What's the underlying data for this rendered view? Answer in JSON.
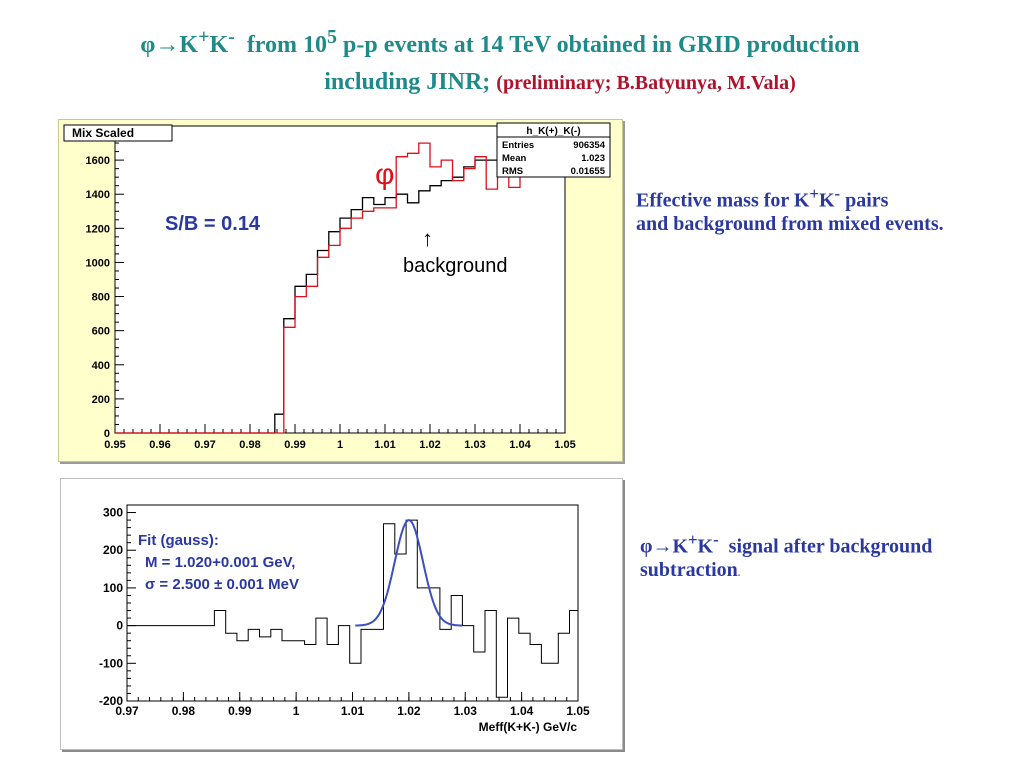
{
  "header": {
    "line1_phi": "φ→K",
    "line1_sup1": "+",
    "line1_k": "K",
    "line1_sup2": "-",
    "line1_mid": "  from 10",
    "line1_sup3": "5",
    "line1_end": " p-p events at 14 TeV obtained in GRID production",
    "line2_main": "including JINR; ",
    "line2_paren_open": "(",
    "line2_prelim": "preliminary; ",
    "line2_authors": "B.Batyunya, M.Vala",
    "line2_paren_close": ")"
  },
  "notes": {
    "note1_line1_pre": "Effective mass for K",
    "note1_sup1": "+",
    "note1_k": "K",
    "note1_sup2": "-",
    "note1_line1_post": " pairs",
    "note1_line2": "and background from mixed events.",
    "note2_phi": "φ→K",
    "note2_sup1": "+",
    "note2_k": "K",
    "note2_sup2": "-",
    "note2_line1_post": "  signal after background",
    "note2_line2": "subtraction",
    "note2_dot": "."
  },
  "colors": {
    "title": "#1f8a8a",
    "red_text": "#b0122b",
    "blue_text": "#2a38a0",
    "signal_hist": "#e0101a",
    "background_hist": "#000000",
    "fit_curve": "#3d4fbf",
    "panel1_bg": "#ffffcc"
  },
  "chart_data": [
    {
      "type": "line",
      "title": "Mix Scaled",
      "xlim": [
        0.95,
        1.05
      ],
      "ylim": [
        0,
        1800
      ],
      "xticks": [
        "0.95",
        "0.96",
        "0.97",
        "0.98",
        "0.99",
        "1",
        "1.01",
        "1.02",
        "1.03",
        "1.04",
        "1.05"
      ],
      "yticks": [
        "0",
        "200",
        "400",
        "600",
        "800",
        "1000",
        "1200",
        "1400",
        "1600"
      ],
      "stats_box": {
        "name": "h_K(+)_K(-)",
        "rows": [
          {
            "label": "Entries",
            "value": "906354"
          },
          {
            "label": "Mean",
            "value": "1.023"
          },
          {
            "label": "RMS",
            "value": "0.01655"
          }
        ]
      },
      "annotations": {
        "sb": "S/B = 0.14",
        "phi": "φ",
        "arrow": "↑",
        "background": "background"
      },
      "bin_edges": [
        0.95,
        0.9575,
        0.965,
        0.9725,
        0.98,
        0.9855,
        0.9875,
        0.99,
        0.9925,
        0.995,
        0.9975,
        1.0,
        1.0025,
        1.005,
        1.0075,
        1.01,
        1.0125,
        1.015,
        1.0175,
        1.02,
        1.0225,
        1.025,
        1.0275,
        1.03,
        1.0325,
        1.035,
        1.0375,
        1.04,
        1.0425,
        1.045,
        1.0475
      ],
      "series": [
        {
          "name": "",
          "style": "black",
          "values": [
            0,
            0,
            0,
            0,
            0,
            110,
            670,
            860,
            930,
            1070,
            1180,
            1260,
            1310,
            1380,
            1340,
            1380,
            1400,
            1350,
            1420,
            1450,
            1480,
            1500,
            1560,
            1600,
            1600,
            1640,
            1620,
            1650,
            1640,
            1640
          ]
        },
        {
          "name": "",
          "style": "red",
          "values": [
            0,
            0,
            0,
            0,
            0,
            0,
            620,
            800,
            860,
            1030,
            1100,
            1200,
            1260,
            1300,
            1320,
            1320,
            1620,
            1640,
            1700,
            1560,
            1600,
            1480,
            1550,
            1620,
            1430,
            1600,
            1440,
            1650,
            1540,
            1560
          ]
        }
      ]
    },
    {
      "type": "line",
      "xlabel": "Meff(K+K-)  GeV/c",
      "xlim": [
        0.97,
        1.05
      ],
      "ylim": [
        -200,
        320
      ],
      "xticks": [
        "0.97",
        "0.98",
        "0.99",
        "1",
        "1.01",
        "1.02",
        "1.03",
        "1.04",
        "1.05"
      ],
      "yticks": [
        "-200",
        "-100",
        "0",
        "100",
        "200",
        "300"
      ],
      "fit_text": {
        "line1": "Fit (gauss):",
        "line2": "M = 1.020+0.001 GeV,",
        "line3_sym": "σ",
        "line3_rest": " = 2.500 ± 0.001 MeV"
      },
      "fit": {
        "mean": 1.02,
        "sigma": 0.0025,
        "amplitude": 280,
        "range": [
          1.0105,
          1.0295
        ]
      },
      "bin_edges": [
        0.97,
        0.9855,
        0.9875,
        0.9895,
        0.9915,
        0.9935,
        0.9955,
        0.9975,
        0.9995,
        1.0015,
        1.0035,
        1.0055,
        1.0075,
        1.0095,
        1.0115,
        1.0135,
        1.0155,
        1.0175,
        1.0195,
        1.0215,
        1.0235,
        1.0255,
        1.0275,
        1.0295,
        1.0315,
        1.0335,
        1.0355,
        1.0375,
        1.0395,
        1.0415,
        1.0435,
        1.0465,
        1.0485,
        1.05
      ],
      "series": [
        {
          "name": "",
          "style": "black",
          "values": [
            0,
            40,
            -20,
            -40,
            -10,
            -30,
            -10,
            -40,
            -40,
            -50,
            20,
            -50,
            0,
            -100,
            -10,
            -10,
            270,
            190,
            280,
            100,
            100,
            -10,
            80,
            0,
            -70,
            40,
            -190,
            20,
            -20,
            -50,
            -100,
            -20,
            40
          ]
        }
      ]
    }
  ]
}
